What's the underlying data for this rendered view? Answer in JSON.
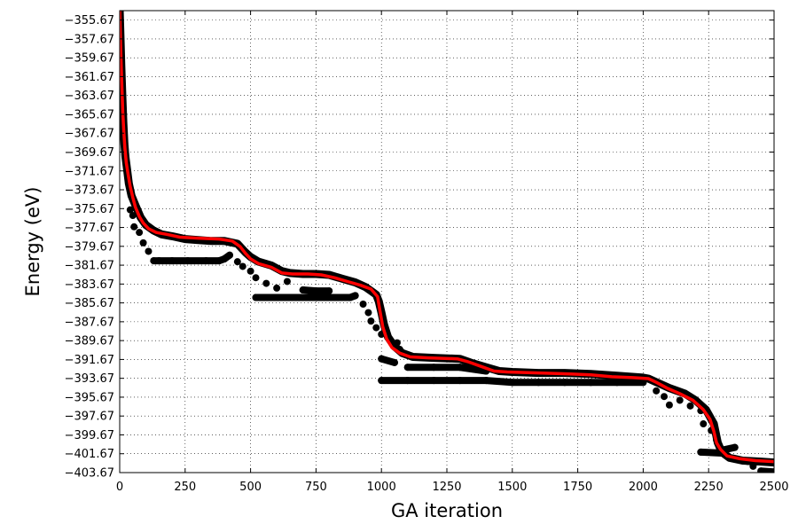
{
  "chart_data": {
    "type": "scatter",
    "xlabel": "GA iteration",
    "ylabel": "Energy (eV)",
    "xlim": [
      0,
      2500
    ],
    "ylim": [
      -403.67,
      -354.67
    ],
    "xticks": [
      0,
      250,
      500,
      750,
      1000,
      1250,
      1500,
      1750,
      2000,
      2250,
      2500
    ],
    "yticks": [
      -355.67,
      -357.67,
      -359.67,
      -361.67,
      -363.67,
      -365.67,
      -367.67,
      -369.67,
      -371.67,
      -373.67,
      -375.67,
      -377.67,
      -379.67,
      -381.67,
      -383.67,
      -385.67,
      -387.67,
      -389.67,
      -391.67,
      -393.67,
      -395.67,
      -397.67,
      -399.67,
      -401.67,
      -403.67
    ],
    "xtick_labels": [
      "0",
      "250",
      "500",
      "750",
      "1000",
      "1250",
      "1500",
      "1750",
      "2000",
      "2250",
      "2500"
    ],
    "ytick_labels": [
      "−355.67",
      "−357.67",
      "−359.67",
      "−361.67",
      "−363.67",
      "−365.67",
      "−367.67",
      "−369.67",
      "−371.67",
      "−373.67",
      "−375.67",
      "−377.67",
      "−379.67",
      "−381.67",
      "−383.67",
      "−385.67",
      "−387.67",
      "−389.67",
      "−391.67",
      "−393.67",
      "−395.67",
      "−397.67",
      "−399.67",
      "−401.67",
      "−403.67"
    ],
    "grid": true,
    "series": [
      {
        "kind": "population-scatter",
        "color": "#000000",
        "points": [
          [
            0,
            -354.6
          ],
          [
            3,
            -357.5
          ],
          [
            6,
            -360.5
          ],
          [
            10,
            -363.8
          ],
          [
            14,
            -366.5
          ],
          [
            18,
            -368.8
          ],
          [
            22,
            -370.2
          ],
          [
            28,
            -371.5
          ],
          [
            35,
            -373.0
          ],
          [
            45,
            -374.3
          ],
          [
            60,
            -375.3
          ],
          [
            80,
            -376.6
          ],
          [
            100,
            -377.4
          ],
          [
            130,
            -378.0
          ],
          [
            160,
            -378.4
          ],
          [
            200,
            -378.6
          ],
          [
            250,
            -378.9
          ],
          [
            300,
            -379.0
          ],
          [
            350,
            -379.1
          ],
          [
            400,
            -379.1
          ],
          [
            450,
            -379.4
          ],
          [
            480,
            -380.3
          ],
          [
            500,
            -380.8
          ],
          [
            530,
            -381.3
          ],
          [
            580,
            -381.7
          ],
          [
            620,
            -382.3
          ],
          [
            650,
            -382.5
          ],
          [
            700,
            -382.6
          ],
          [
            750,
            -382.6
          ],
          [
            800,
            -382.7
          ],
          [
            850,
            -383.1
          ],
          [
            900,
            -383.5
          ],
          [
            940,
            -384.0
          ],
          [
            960,
            -384.4
          ],
          [
            980,
            -384.8
          ],
          [
            990,
            -385.5
          ],
          [
            1000,
            -386.7
          ],
          [
            1010,
            -388.0
          ],
          [
            1025,
            -389.3
          ],
          [
            1050,
            -390.3
          ],
          [
            1080,
            -391.0
          ],
          [
            1120,
            -391.4
          ],
          [
            1200,
            -391.5
          ],
          [
            1300,
            -391.6
          ],
          [
            1340,
            -392.0
          ],
          [
            1400,
            -392.5
          ],
          [
            1450,
            -392.9
          ],
          [
            1500,
            -393.0
          ],
          [
            1600,
            -393.1
          ],
          [
            1700,
            -393.1
          ],
          [
            1800,
            -393.2
          ],
          [
            1900,
            -393.4
          ],
          [
            2000,
            -393.6
          ],
          [
            2020,
            -393.7
          ],
          [
            2060,
            -394.2
          ],
          [
            2100,
            -394.7
          ],
          [
            2160,
            -395.3
          ],
          [
            2200,
            -396.0
          ],
          [
            2240,
            -397.0
          ],
          [
            2270,
            -398.5
          ],
          [
            2285,
            -400.5
          ],
          [
            2300,
            -401.5
          ],
          [
            2330,
            -402.1
          ],
          [
            2380,
            -402.4
          ],
          [
            2450,
            -402.5
          ],
          [
            2500,
            -402.6
          ],
          [
            40,
            -375.8
          ],
          [
            50,
            -376.4
          ],
          [
            55,
            -377.6
          ],
          [
            75,
            -378.2
          ],
          [
            90,
            -379.3
          ],
          [
            110,
            -380.2
          ],
          [
            130,
            -381.2
          ],
          [
            150,
            -381.2
          ],
          [
            200,
            -381.2
          ],
          [
            260,
            -381.2
          ],
          [
            330,
            -381.2
          ],
          [
            380,
            -381.2
          ],
          [
            400,
            -381.0
          ],
          [
            420,
            -380.6
          ],
          [
            450,
            -381.3
          ],
          [
            470,
            -381.8
          ],
          [
            500,
            -382.3
          ],
          [
            520,
            -383.0
          ],
          [
            560,
            -383.6
          ],
          [
            600,
            -384.1
          ],
          [
            640,
            -383.4
          ],
          [
            700,
            -384.3
          ],
          [
            750,
            -384.4
          ],
          [
            800,
            -384.4
          ],
          [
            520,
            -385.1
          ],
          [
            600,
            -385.1
          ],
          [
            700,
            -385.1
          ],
          [
            800,
            -385.1
          ],
          [
            880,
            -385.1
          ],
          [
            900,
            -384.9
          ],
          [
            930,
            -385.8
          ],
          [
            950,
            -386.7
          ],
          [
            960,
            -387.6
          ],
          [
            980,
            -388.3
          ],
          [
            1000,
            -389.0
          ],
          [
            1060,
            -389.9
          ],
          [
            1070,
            -390.6
          ],
          [
            1000,
            -391.6
          ],
          [
            1050,
            -392.0
          ],
          [
            1100,
            -392.5
          ],
          [
            1200,
            -392.5
          ],
          [
            1300,
            -392.5
          ],
          [
            1400,
            -392.9
          ],
          [
            1000,
            -393.9
          ],
          [
            1100,
            -393.9
          ],
          [
            1200,
            -393.9
          ],
          [
            1300,
            -393.9
          ],
          [
            1400,
            -393.9
          ],
          [
            1500,
            -394.1
          ],
          [
            1600,
            -394.1
          ],
          [
            1700,
            -394.1
          ],
          [
            1800,
            -394.1
          ],
          [
            1900,
            -394.1
          ],
          [
            2000,
            -394.1
          ],
          [
            2050,
            -395.0
          ],
          [
            2080,
            -395.6
          ],
          [
            2100,
            -396.5
          ],
          [
            2140,
            -396.0
          ],
          [
            2180,
            -396.6
          ],
          [
            2220,
            -397.1
          ],
          [
            2230,
            -398.5
          ],
          [
            2260,
            -399.2
          ],
          [
            2280,
            -400.2
          ],
          [
            2300,
            -401.3
          ],
          [
            2350,
            -401.0
          ],
          [
            2400,
            -402.5
          ],
          [
            2420,
            -403.0
          ],
          [
            2450,
            -403.5
          ],
          [
            2500,
            -403.6
          ],
          [
            2220,
            -401.5
          ],
          [
            2300,
            -401.6
          ]
        ]
      },
      {
        "kind": "average-line",
        "color": "#ff0000",
        "points": [
          [
            0,
            -354.6
          ],
          [
            4,
            -359.0
          ],
          [
            8,
            -362.5
          ],
          [
            12,
            -365.5
          ],
          [
            16,
            -367.6
          ],
          [
            20,
            -369.3
          ],
          [
            25,
            -370.8
          ],
          [
            32,
            -372.0
          ],
          [
            40,
            -373.3
          ],
          [
            50,
            -374.5
          ],
          [
            60,
            -375.5
          ],
          [
            75,
            -376.5
          ],
          [
            90,
            -377.2
          ],
          [
            110,
            -377.8
          ],
          [
            140,
            -378.2
          ],
          [
            180,
            -378.4
          ],
          [
            230,
            -378.7
          ],
          [
            300,
            -378.8
          ],
          [
            380,
            -378.9
          ],
          [
            430,
            -379.1
          ],
          [
            460,
            -379.7
          ],
          [
            480,
            -380.4
          ],
          [
            500,
            -381.0
          ],
          [
            530,
            -381.5
          ],
          [
            580,
            -381.9
          ],
          [
            620,
            -382.5
          ],
          [
            660,
            -382.6
          ],
          [
            720,
            -382.6
          ],
          [
            770,
            -382.7
          ],
          [
            820,
            -383.0
          ],
          [
            870,
            -383.4
          ],
          [
            920,
            -383.8
          ],
          [
            960,
            -384.2
          ],
          [
            985,
            -385.0
          ],
          [
            995,
            -386.6
          ],
          [
            1005,
            -388.2
          ],
          [
            1020,
            -389.5
          ],
          [
            1040,
            -390.4
          ],
          [
            1070,
            -391.0
          ],
          [
            1110,
            -391.4
          ],
          [
            1180,
            -391.5
          ],
          [
            1290,
            -391.6
          ],
          [
            1330,
            -391.9
          ],
          [
            1380,
            -392.4
          ],
          [
            1430,
            -392.9
          ],
          [
            1480,
            -393.0
          ],
          [
            1600,
            -393.1
          ],
          [
            1720,
            -393.2
          ],
          [
            1800,
            -393.3
          ],
          [
            1880,
            -393.5
          ],
          [
            1960,
            -393.6
          ],
          [
            2020,
            -393.7
          ],
          [
            2050,
            -394.1
          ],
          [
            2090,
            -394.7
          ],
          [
            2140,
            -395.3
          ],
          [
            2190,
            -396.0
          ],
          [
            2230,
            -397.0
          ],
          [
            2255,
            -398.0
          ],
          [
            2270,
            -399.3
          ],
          [
            2280,
            -400.5
          ],
          [
            2295,
            -401.2
          ],
          [
            2320,
            -401.9
          ],
          [
            2370,
            -402.2
          ],
          [
            2430,
            -402.4
          ],
          [
            2500,
            -402.5
          ]
        ]
      }
    ]
  }
}
